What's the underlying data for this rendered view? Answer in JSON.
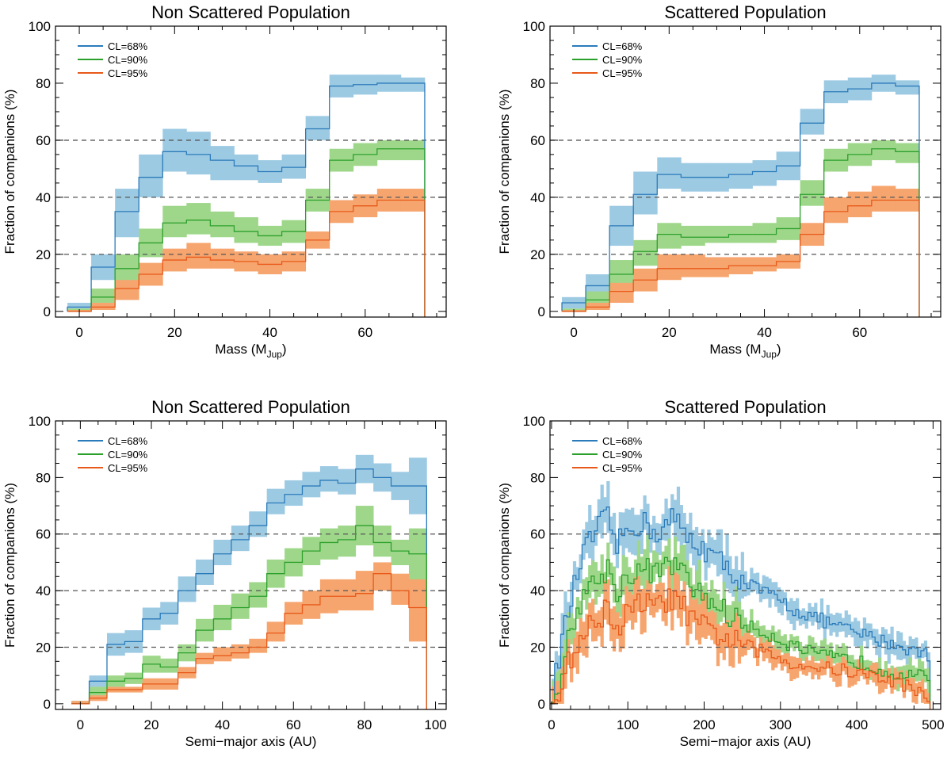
{
  "figure_caption": "",
  "chart_data": [
    {
      "type": "step",
      "title": "Non Scattered Population",
      "xlabel": "Mass (M",
      "xlabel_sub": "Jup",
      "xlabel_suffix": ")",
      "ylabel": "Fraction of companions (%)",
      "xlim": [
        -5,
        77
      ],
      "ylim": [
        -2,
        100
      ],
      "xticks": [
        0,
        20,
        40,
        60
      ],
      "yticks": [
        0,
        20,
        40,
        60,
        80,
        100
      ],
      "hlines": [
        20,
        40,
        60
      ],
      "legend": [
        "CL=68%",
        "CL=90%",
        "CL=95%"
      ],
      "x_edges": [
        -2.5,
        2.5,
        7.5,
        12.5,
        17.5,
        22.5,
        27.5,
        32.5,
        37.5,
        42.5,
        47.5,
        52.5,
        57.5,
        62.5,
        67.5,
        72.5
      ],
      "series": [
        {
          "name": "CL=68%",
          "color": "#2b7bba",
          "band": "#9dcae3",
          "values": [
            1.5,
            15.5,
            35,
            47,
            56,
            55,
            53,
            51,
            49,
            50.5,
            64,
            79,
            79.5,
            80,
            80
          ],
          "lower": [
            0.5,
            11,
            26,
            40,
            49,
            48,
            46,
            46,
            45,
            46.5,
            60,
            75,
            76,
            77,
            77
          ],
          "upper": [
            3,
            20,
            43,
            55,
            64,
            63,
            58,
            55,
            53,
            55,
            68.5,
            83,
            83,
            83,
            82
          ]
        },
        {
          "name": "CL=90%",
          "color": "#2ca02c",
          "band": "#9fd78a",
          "values": [
            0,
            5,
            15,
            24,
            31,
            32,
            30,
            28,
            26.5,
            28,
            39,
            53,
            55,
            57,
            57
          ],
          "lower": [
            0,
            2,
            10,
            19,
            26,
            27,
            26,
            24,
            23,
            24,
            35,
            49,
            51,
            53,
            53
          ],
          "upper": [
            1,
            8,
            20,
            29,
            37,
            38,
            35,
            33,
            30,
            32,
            43,
            57,
            59,
            60,
            60
          ]
        },
        {
          "name": "CL=95%",
          "color": "#e8591a",
          "band": "#f6a56e",
          "values": [
            0,
            1.5,
            8,
            13,
            18,
            19,
            18,
            17.5,
            16.5,
            17.5,
            25,
            35,
            37,
            39,
            39
          ],
          "lower": [
            0,
            0.5,
            4,
            9,
            14,
            15,
            15,
            14,
            13,
            14,
            22,
            31,
            33,
            35,
            35
          ],
          "upper": [
            0.5,
            3,
            11,
            17,
            22,
            24,
            22,
            21,
            20,
            21,
            28,
            39,
            41,
            43,
            43
          ]
        }
      ]
    },
    {
      "type": "step",
      "title": "Scattered Population",
      "xlabel": "Mass (M",
      "xlabel_sub": "Jup",
      "xlabel_suffix": ")",
      "ylabel": "Fraction of companions (%)",
      "xlim": [
        -5,
        77
      ],
      "ylim": [
        -2,
        100
      ],
      "xticks": [
        0,
        20,
        40,
        60
      ],
      "yticks": [
        0,
        20,
        40,
        60,
        80,
        100
      ],
      "hlines": [
        20,
        40,
        60
      ],
      "legend": [
        "CL=68%",
        "CL=90%",
        "CL=95%"
      ],
      "x_edges": [
        -2.5,
        2.5,
        7.5,
        12.5,
        17.5,
        22.5,
        27.5,
        32.5,
        37.5,
        42.5,
        47.5,
        52.5,
        57.5,
        62.5,
        67.5,
        72.5
      ],
      "series": [
        {
          "name": "CL=68%",
          "color": "#2b7bba",
          "band": "#9dcae3",
          "values": [
            3,
            9,
            30,
            41,
            48,
            47,
            47,
            48,
            49,
            51,
            66,
            77,
            78,
            80,
            79
          ],
          "lower": [
            1,
            6,
            23,
            34,
            43,
            42,
            42,
            43,
            44,
            46,
            62,
            73,
            74,
            77,
            76
          ],
          "upper": [
            5,
            13,
            37,
            49,
            54,
            52,
            52,
            52,
            53,
            56,
            71,
            81,
            82,
            83,
            81
          ]
        },
        {
          "name": "CL=90%",
          "color": "#2ca02c",
          "band": "#9fd78a",
          "values": [
            0,
            4,
            13,
            21,
            27,
            26,
            26,
            27,
            27,
            29,
            41,
            53,
            55,
            57,
            56
          ],
          "lower": [
            0,
            2,
            9,
            16,
            22,
            23,
            24,
            24,
            24,
            25,
            37,
            49,
            51,
            53,
            52
          ],
          "upper": [
            1,
            7,
            18,
            25,
            31,
            30,
            30,
            30,
            31,
            33,
            46,
            57,
            59,
            60,
            59
          ]
        },
        {
          "name": "CL=95%",
          "color": "#e8591a",
          "band": "#f6a56e",
          "values": [
            0,
            1.5,
            7,
            11,
            15,
            15,
            15,
            16,
            16,
            17.5,
            27,
            35,
            37,
            39,
            39
          ],
          "lower": [
            0,
            0.5,
            3,
            7,
            11,
            12,
            12,
            13,
            14,
            15,
            23,
            31,
            33,
            35,
            35
          ],
          "upper": [
            0.5,
            3,
            10,
            15,
            20,
            20,
            19,
            19,
            19,
            20,
            31,
            40,
            42,
            44,
            43
          ]
        }
      ]
    },
    {
      "type": "step",
      "title": "Non Scattered Population",
      "xlabel": "Semi−major axis (AU)",
      "ylabel": "Fraction of companions (%)",
      "xlim": [
        -7,
        103
      ],
      "ylim": [
        -2,
        100
      ],
      "xticks": [
        0,
        20,
        40,
        60,
        80,
        100
      ],
      "yticks": [
        0,
        20,
        40,
        60,
        80,
        100
      ],
      "hlines": [
        20,
        40,
        60
      ],
      "legend": [
        "CL=68%",
        "CL=90%",
        "CL=95%"
      ],
      "x_edges": [
        -2.5,
        2.5,
        7.5,
        12.5,
        17.5,
        22.5,
        27.5,
        32.5,
        37.5,
        42.5,
        47.5,
        52.5,
        57.5,
        62.5,
        67.5,
        72.5,
        77.5,
        82.5,
        87.5,
        92.5,
        97.5
      ],
      "series": [
        {
          "name": "CL=68%",
          "color": "#2b7bba",
          "band": "#9dcae3",
          "values": [
            0,
            8,
            21,
            22,
            30,
            32,
            40,
            46,
            53,
            58,
            63,
            71,
            74,
            77,
            79,
            78,
            83,
            80,
            77,
            77
          ],
          "lower": [
            0,
            6,
            17,
            18,
            26,
            28,
            36,
            42,
            49,
            54,
            59,
            67,
            70,
            73,
            75,
            74,
            78,
            75,
            72,
            67
          ],
          "upper": [
            1,
            10,
            25,
            26,
            34,
            36,
            45,
            51,
            58,
            63,
            68,
            76,
            79,
            82,
            84,
            83,
            88,
            85,
            82,
            87
          ]
        },
        {
          "name": "CL=90%",
          "color": "#2ca02c",
          "band": "#9fd78a",
          "values": [
            0,
            4,
            8,
            9,
            14,
            13,
            18,
            26,
            30,
            34,
            38,
            46,
            50,
            54,
            57,
            58,
            63,
            57,
            54,
            53
          ],
          "lower": [
            0,
            2,
            6,
            7,
            11,
            11,
            15,
            22,
            26,
            30,
            34,
            41,
            45,
            49,
            51,
            52,
            56,
            52,
            49,
            43
          ],
          "upper": [
            1,
            6,
            10,
            11,
            17,
            16,
            21,
            30,
            35,
            39,
            43,
            51,
            55,
            59,
            62,
            63,
            70,
            63,
            58,
            62
          ]
        },
        {
          "name": "CL=95%",
          "color": "#e8591a",
          "band": "#f6a56e",
          "values": [
            0,
            2,
            5,
            5,
            7,
            7,
            11,
            16,
            17,
            18,
            20,
            25,
            32,
            35,
            38,
            38,
            39,
            46,
            40,
            34
          ],
          "lower": [
            0,
            1,
            4,
            4,
            5,
            5,
            9,
            14,
            15,
            16,
            18,
            22,
            28,
            30,
            32,
            33,
            33,
            40,
            35,
            22
          ],
          "upper": [
            1,
            3,
            6,
            6,
            9,
            9,
            13,
            18,
            20,
            21,
            23,
            29,
            36,
            40,
            44,
            44,
            47,
            50,
            46,
            44
          ]
        }
      ]
    },
    {
      "type": "step",
      "title": "Scattered Population",
      "xlabel": "Semi−major axis (AU)",
      "ylabel": "Fraction of companions (%)",
      "xlim": [
        -2,
        510
      ],
      "ylim": [
        -2,
        100
      ],
      "xticks": [
        0,
        100,
        200,
        300,
        400,
        500
      ],
      "yticks": [
        0,
        20,
        40,
        60,
        80,
        100
      ],
      "hlines": [
        20,
        40,
        60
      ],
      "legend": [
        "CL=68%",
        "CL=90%",
        "CL=95%"
      ],
      "x_range": [
        0,
        496
      ],
      "anchor_note": "piecewise-linear trend values at anchor x positions (data units)",
      "series": [
        {
          "name": "CL=68%",
          "color": "#2b7bba",
          "band": "#9dcae3",
          "anchors_x": [
            0,
            10,
            20,
            40,
            60,
            75,
            85,
            100,
            120,
            140,
            160,
            170,
            180,
            200,
            230,
            260,
            290,
            320,
            350,
            400,
            450,
            496
          ],
          "anchors_y": [
            0,
            17,
            30,
            52,
            62,
            66,
            55,
            62,
            64,
            60,
            66,
            62,
            58,
            55,
            48,
            42,
            38,
            33,
            30,
            25,
            21,
            17
          ],
          "half_width": 7
        },
        {
          "name": "CL=90%",
          "color": "#2ca02c",
          "band": "#9fd78a",
          "anchors_x": [
            0,
            10,
            20,
            40,
            60,
            75,
            85,
            100,
            120,
            140,
            160,
            170,
            180,
            200,
            230,
            260,
            290,
            320,
            350,
            400,
            450,
            496
          ],
          "anchors_y": [
            0,
            8,
            20,
            38,
            44,
            48,
            40,
            45,
            48,
            46,
            50,
            47,
            42,
            38,
            32,
            27,
            24,
            20,
            17,
            15,
            11,
            9
          ],
          "half_width": 6
        },
        {
          "name": "CL=95%",
          "color": "#e8591a",
          "band": "#f6a56e",
          "anchors_x": [
            0,
            10,
            20,
            40,
            60,
            75,
            85,
            100,
            120,
            140,
            160,
            170,
            180,
            200,
            230,
            260,
            290,
            320,
            350,
            400,
            450,
            496
          ],
          "anchors_y": [
            0,
            5,
            13,
            24,
            30,
            34,
            26,
            32,
            36,
            34,
            38,
            36,
            30,
            27,
            23,
            20,
            17,
            14,
            13,
            11,
            8,
            3
          ],
          "half_width": 6
        }
      ]
    }
  ]
}
